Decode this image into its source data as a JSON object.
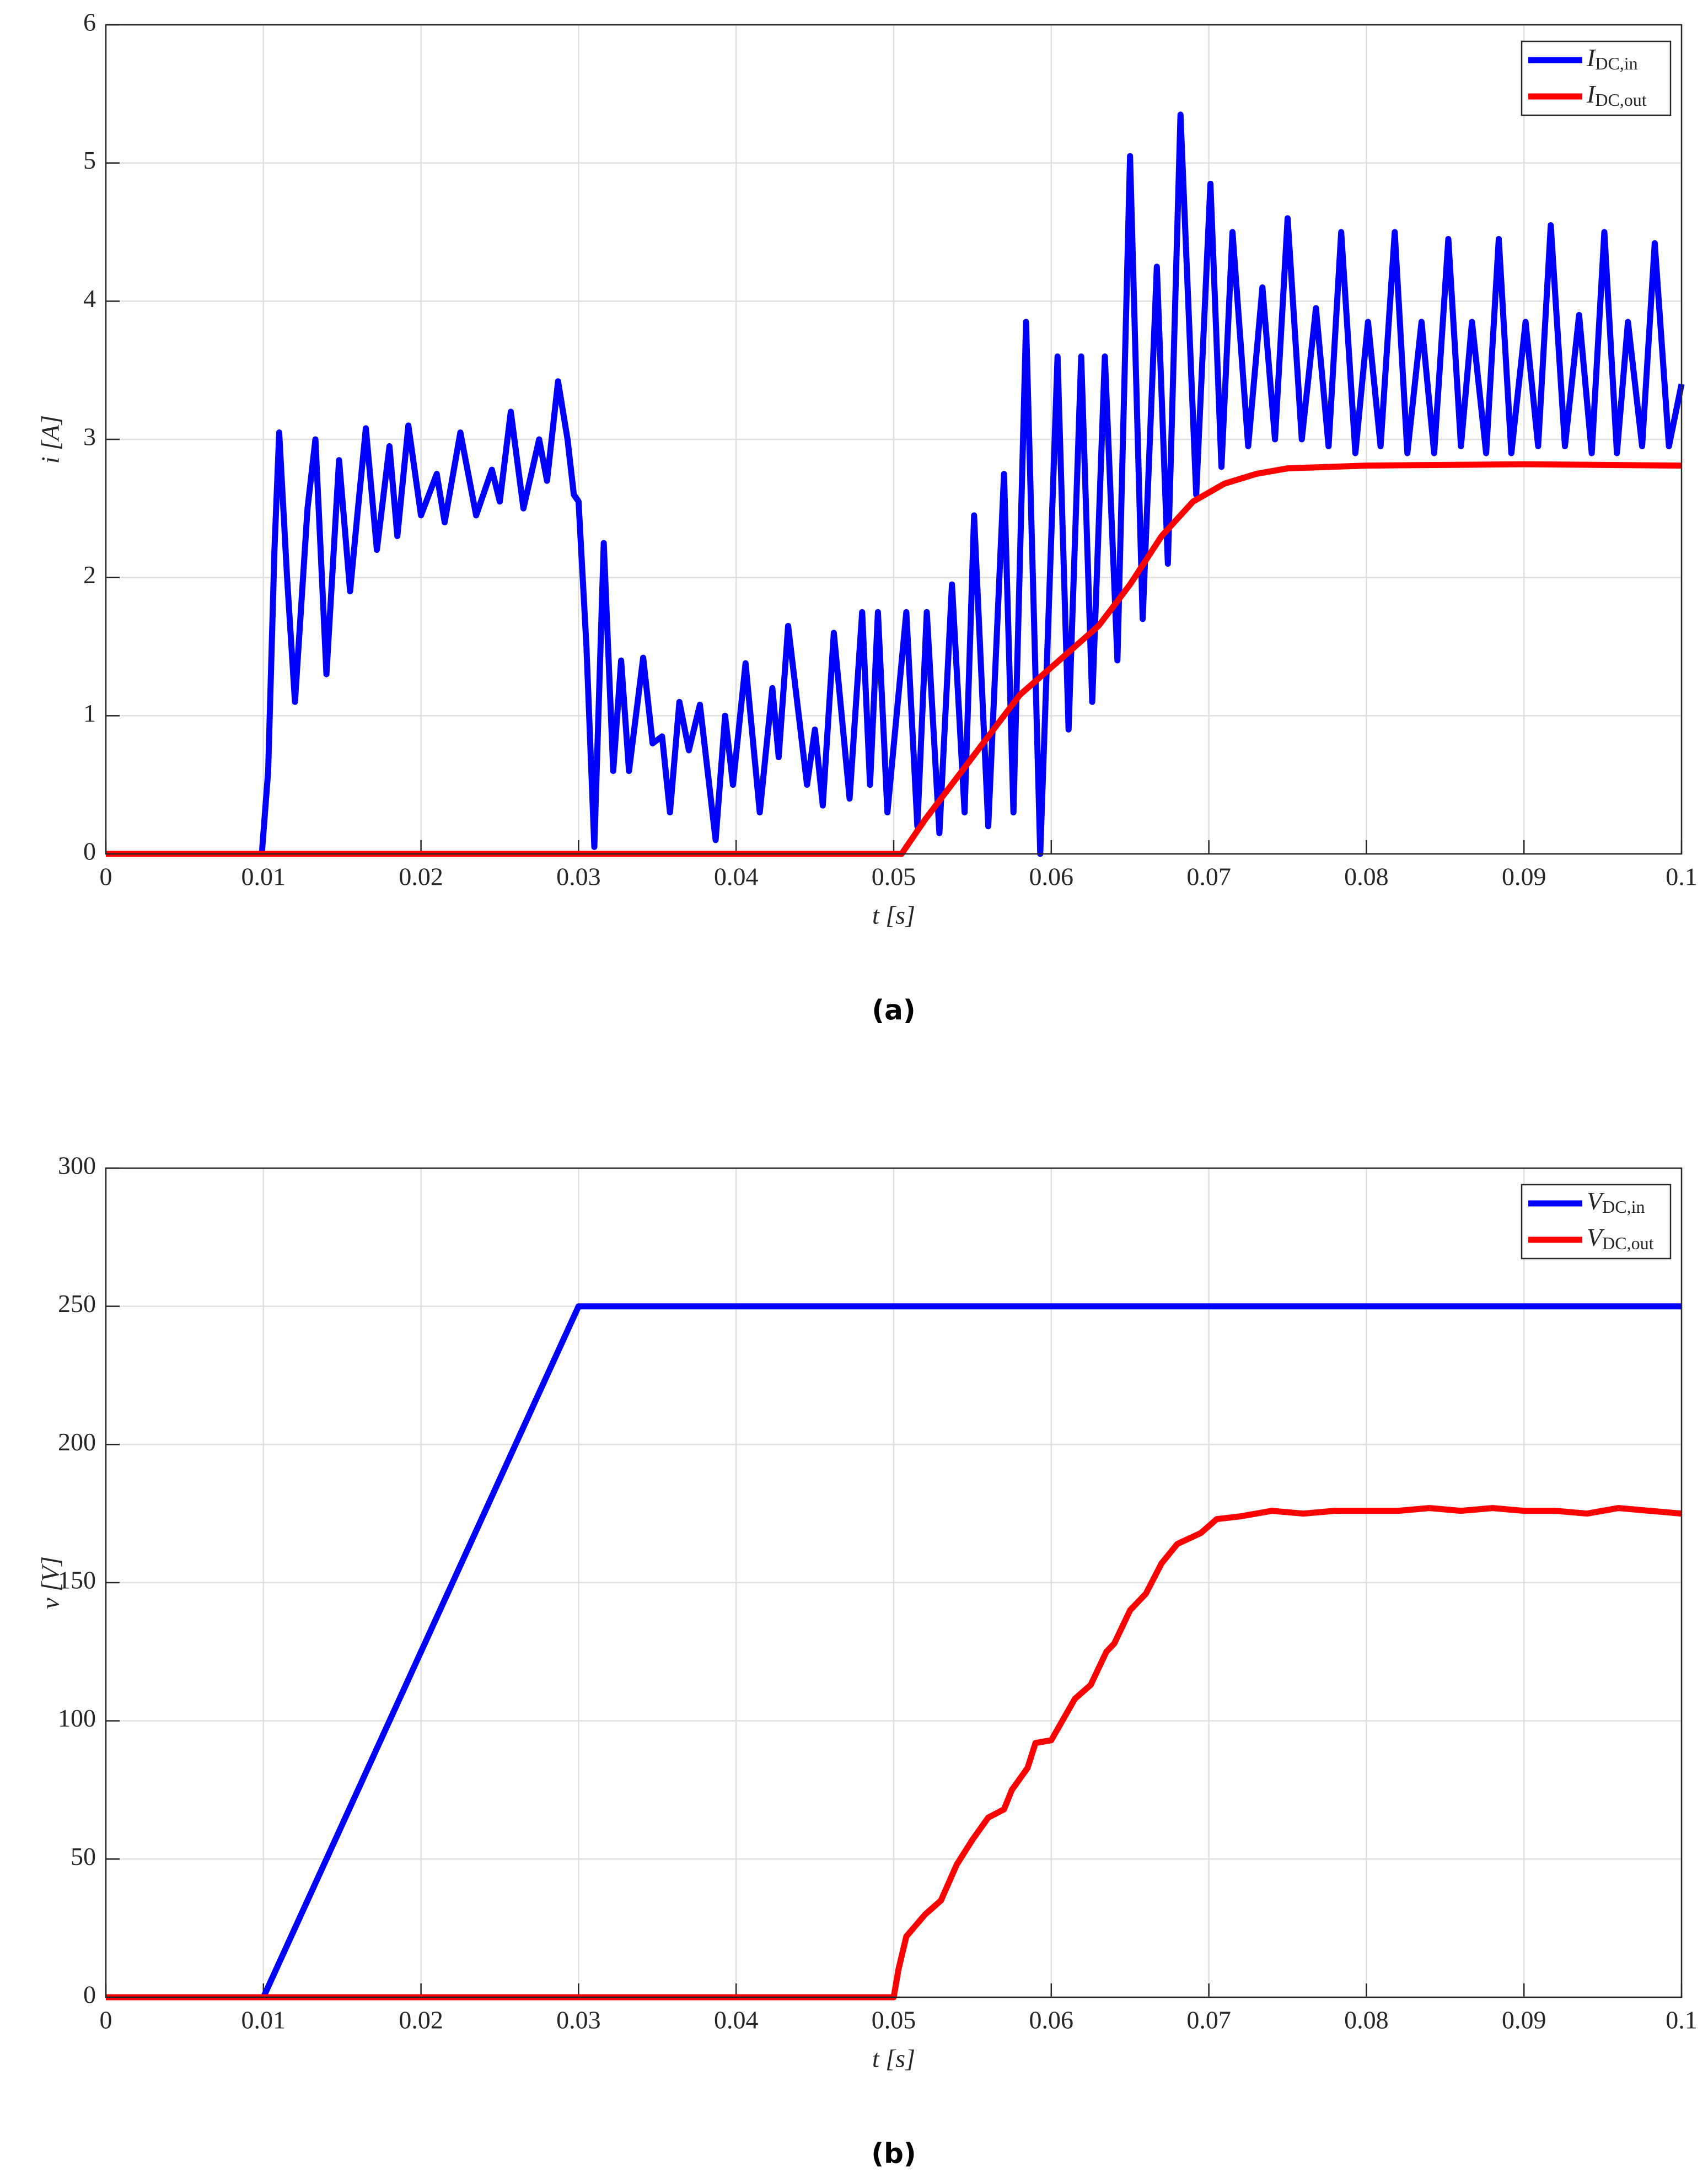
{
  "chart_data": [
    {
      "type": "line",
      "caption": "(a)",
      "xlabel": "t [s]",
      "ylabel": "i [A]",
      "grid": true,
      "legend": "top-right",
      "xlim": [
        0,
        0.1
      ],
      "xticks": [
        0,
        0.01,
        0.02,
        0.03,
        0.04,
        0.05,
        0.06,
        0.07,
        0.08,
        0.09,
        0.1
      ],
      "ylim": [
        0,
        6
      ],
      "yticks": [
        0,
        1,
        2,
        3,
        4,
        5,
        6
      ],
      "series": [
        {
          "name": "IDC,in",
          "color": "#0000ff",
          "x": [
            0,
            0.0099,
            0.0103,
            0.0107,
            0.011,
            0.0115,
            0.012,
            0.0128,
            0.0133,
            0.014,
            0.0148,
            0.0155,
            0.016,
            0.0165,
            0.0172,
            0.018,
            0.0185,
            0.0192,
            0.02,
            0.021,
            0.0215,
            0.0225,
            0.0235,
            0.0245,
            0.025,
            0.0257,
            0.0265,
            0.0275,
            0.028,
            0.0287,
            0.0293,
            0.0297,
            0.03,
            0.0305,
            0.031,
            0.0316,
            0.0322,
            0.0327,
            0.0332,
            0.0341,
            0.0347,
            0.0353,
            0.0358,
            0.0364,
            0.037,
            0.0377,
            0.0387,
            0.0393,
            0.0398,
            0.0406,
            0.0415,
            0.0423,
            0.0427,
            0.0433,
            0.0445,
            0.045,
            0.0455,
            0.0462,
            0.0472,
            0.048,
            0.0485,
            0.049,
            0.0496,
            0.0508,
            0.0515,
            0.0521,
            0.0529,
            0.0537,
            0.0545,
            0.0551,
            0.056,
            0.057,
            0.0576,
            0.0584,
            0.0593,
            0.0604,
            0.0611,
            0.0619,
            0.0626,
            0.0634,
            0.0642,
            0.065,
            0.0658,
            0.0667,
            0.0674,
            0.0682,
            0.0692,
            0.0701,
            0.0708,
            0.0715,
            0.0725,
            0.0734,
            0.0742,
            0.075,
            0.0759,
            0.0768,
            0.0776,
            0.0784,
            0.0793,
            0.0801,
            0.0809,
            0.0818,
            0.0826,
            0.0835,
            0.0843,
            0.0852,
            0.086,
            0.0867,
            0.0876,
            0.0884,
            0.0892,
            0.0901,
            0.0909,
            0.0917,
            0.0926,
            0.0935,
            0.0943,
            0.0951,
            0.0959,
            0.0966,
            0.0975,
            0.0983,
            0.0992,
            0.1
          ],
          "values": [
            0,
            0,
            0.6,
            2.2,
            3.05,
            2.0,
            1.1,
            2.5,
            3.0,
            1.3,
            2.85,
            1.9,
            2.5,
            3.08,
            2.2,
            2.95,
            2.3,
            3.1,
            2.45,
            2.75,
            2.4,
            3.05,
            2.45,
            2.78,
            2.55,
            3.2,
            2.5,
            3.0,
            2.7,
            3.42,
            3.0,
            2.6,
            2.55,
            1.5,
            0.05,
            2.25,
            0.6,
            1.4,
            0.6,
            1.42,
            0.8,
            0.85,
            0.3,
            1.1,
            0.75,
            1.08,
            0.1,
            1.0,
            0.5,
            1.38,
            0.3,
            1.2,
            0.7,
            1.65,
            0.5,
            0.9,
            0.35,
            1.6,
            0.4,
            1.75,
            0.5,
            1.75,
            0.3,
            1.75,
            0.2,
            1.75,
            0.15,
            1.95,
            0.3,
            2.45,
            0.2,
            2.75,
            0.3,
            3.85,
            0.0,
            3.6,
            0.9,
            3.6,
            1.1,
            3.6,
            1.4,
            5.05,
            1.7,
            4.25,
            2.1,
            5.35,
            2.6,
            4.85,
            2.8,
            4.5,
            2.95,
            4.1,
            3.0,
            4.6,
            3.0,
            3.95,
            2.95,
            4.5,
            2.9,
            3.85,
            2.95,
            4.5,
            2.9,
            3.85,
            2.9,
            4.45,
            2.95,
            3.85,
            2.9,
            4.45,
            2.9,
            3.85,
            2.95,
            4.55,
            2.95,
            3.9,
            2.9,
            4.5,
            2.9,
            3.85,
            2.95,
            4.42,
            2.95,
            3.4
          ]
        },
        {
          "name": "IDC,out",
          "color": "#ff0000",
          "x": [
            0,
            0.0505,
            0.052,
            0.055,
            0.058,
            0.0605,
            0.063,
            0.065,
            0.067,
            0.069,
            0.071,
            0.073,
            0.075,
            0.08,
            0.09,
            0.1
          ],
          "values": [
            0,
            0,
            0.25,
            0.7,
            1.15,
            1.4,
            1.65,
            1.95,
            2.3,
            2.55,
            2.68,
            2.75,
            2.79,
            2.81,
            2.82,
            2.81
          ]
        }
      ]
    },
    {
      "type": "line",
      "caption": "(b)",
      "xlabel": "t [s]",
      "ylabel": "v [V]",
      "grid": true,
      "legend": "top-right",
      "xlim": [
        0,
        0.1
      ],
      "xticks": [
        0,
        0.01,
        0.02,
        0.03,
        0.04,
        0.05,
        0.06,
        0.07,
        0.08,
        0.09,
        0.1
      ],
      "ylim": [
        0,
        300
      ],
      "yticks": [
        0,
        50,
        100,
        150,
        200,
        250,
        300
      ],
      "series": [
        {
          "name": "VDC,in",
          "color": "#0000ff",
          "x": [
            0,
            0.01,
            0.03,
            0.1
          ],
          "values": [
            0,
            0,
            250,
            250
          ]
        },
        {
          "name": "VDC,out",
          "color": "#ff0000",
          "x": [
            0,
            0.05,
            0.0503,
            0.0508,
            0.052,
            0.053,
            0.054,
            0.055,
            0.056,
            0.057,
            0.0575,
            0.0585,
            0.059,
            0.06,
            0.0605,
            0.0615,
            0.0625,
            0.0635,
            0.064,
            0.065,
            0.066,
            0.067,
            0.068,
            0.0695,
            0.0705,
            0.072,
            0.074,
            0.076,
            0.078,
            0.08,
            0.082,
            0.084,
            0.086,
            0.088,
            0.09,
            0.092,
            0.094,
            0.096,
            0.098,
            0.1
          ],
          "values": [
            0,
            0,
            10,
            22,
            30,
            35,
            48,
            57,
            65,
            68,
            75,
            83,
            92,
            93,
            98,
            108,
            113,
            125,
            128,
            140,
            146,
            157,
            164,
            168,
            173,
            174,
            176,
            175,
            176,
            176,
            176,
            177,
            176,
            177,
            176,
            176,
            175,
            177,
            176,
            175
          ]
        }
      ]
    }
  ]
}
